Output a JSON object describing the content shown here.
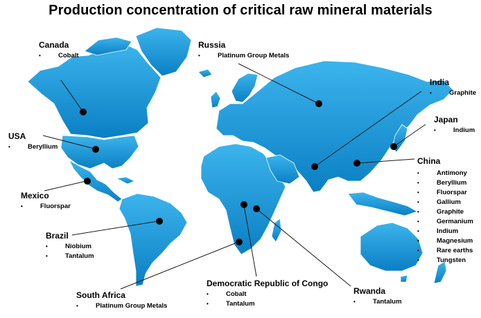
{
  "title": "Production concentration of critical raw mineral materials",
  "colors": {
    "land": "#1e9ad8",
    "land_dark": "#0b74b4",
    "dot": "#000000",
    "text": "#000000"
  },
  "countries": {
    "canada": {
      "name": "Canada",
      "minerals": [
        "Cobalt"
      ]
    },
    "russia": {
      "name": "Russia",
      "minerals": [
        "Platinum Group Metals"
      ]
    },
    "india": {
      "name": "India",
      "minerals": [
        "Graphite"
      ]
    },
    "japan": {
      "name": "Japan",
      "minerals": [
        "Indium"
      ]
    },
    "usa": {
      "name": "USA",
      "minerals": [
        "Beryllium"
      ]
    },
    "china": {
      "name": "China",
      "minerals": [
        "Antimony",
        "Beryllium",
        "Fluorspar",
        "Gallium",
        "Graphite",
        "Germanium",
        "Indium",
        "Magnesium",
        "Rare earths",
        "Tungsten"
      ]
    },
    "mexico": {
      "name": "Mexico",
      "minerals": [
        "Fluorspar"
      ]
    },
    "brazil": {
      "name": "Brazil",
      "minerals": [
        "Niobium",
        "Tantalum"
      ]
    },
    "south_africa": {
      "name": "South Africa",
      "minerals": [
        "Platinum Group Metals"
      ]
    },
    "drc": {
      "name": "Democratic Republic of Congo",
      "minerals": [
        "Cobalt",
        "Tantalum"
      ]
    },
    "rwanda": {
      "name": "Rwanda",
      "minerals": [
        "Tantalum"
      ]
    }
  }
}
